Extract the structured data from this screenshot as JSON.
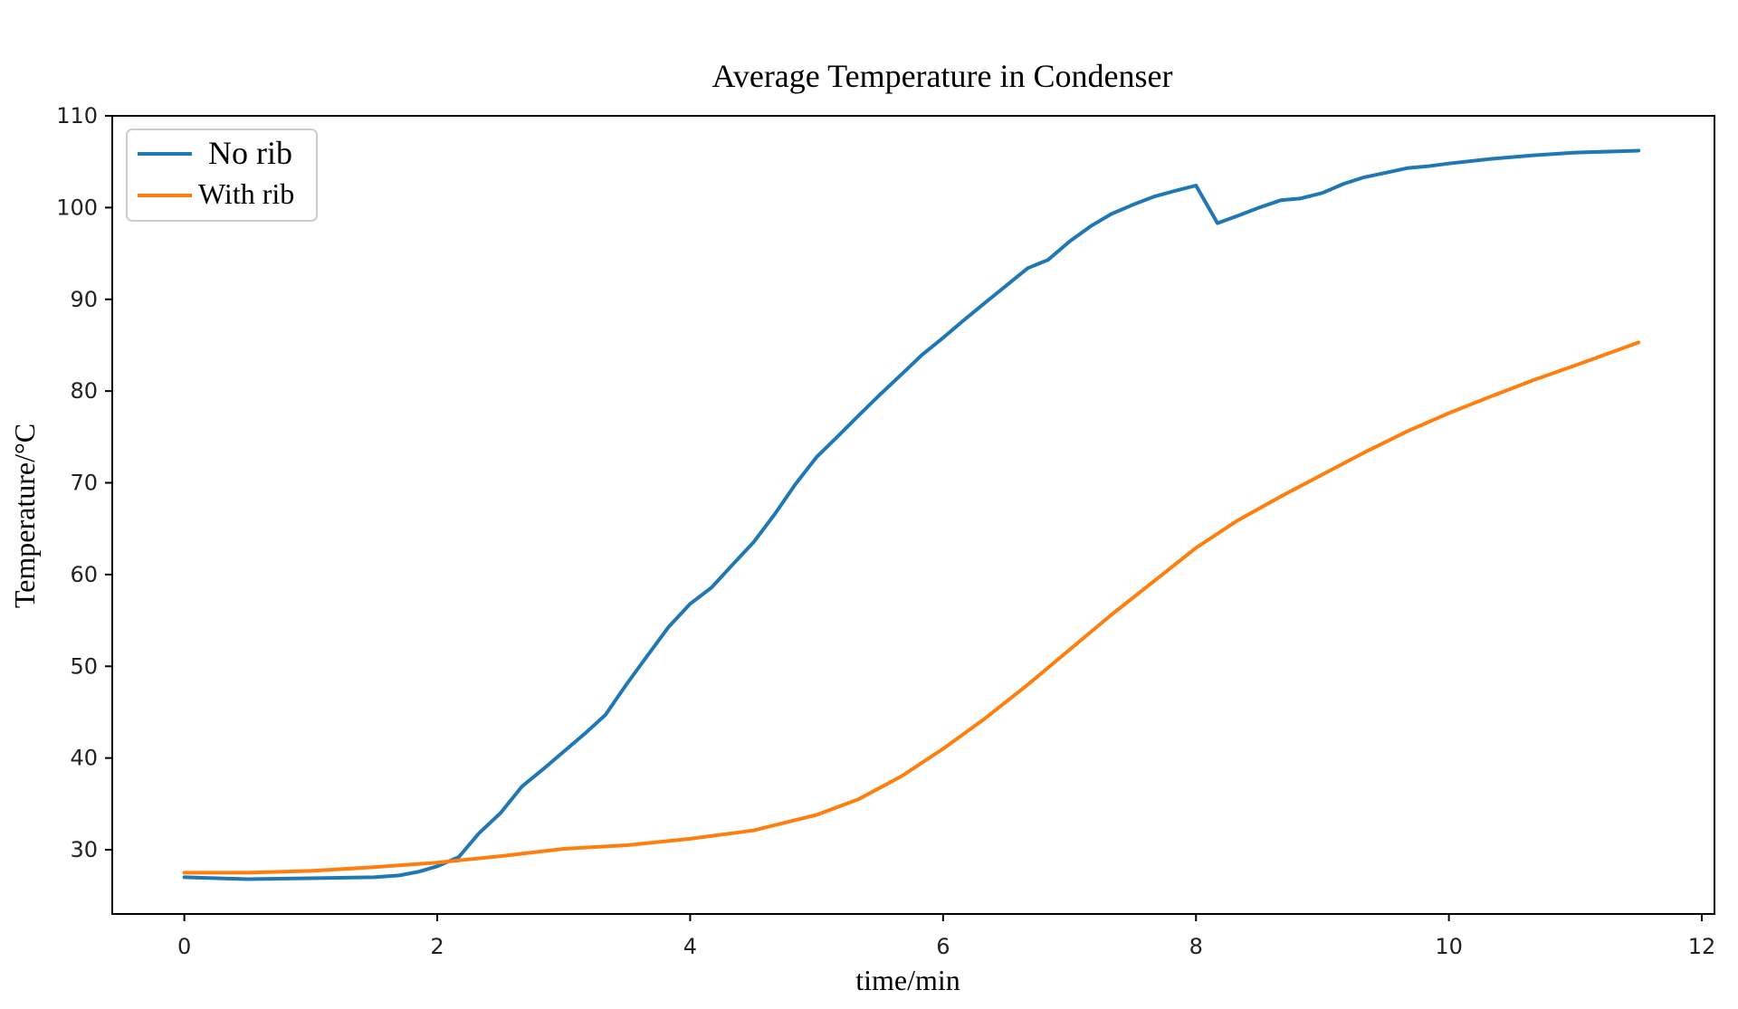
{
  "chart_data": {
    "type": "line",
    "title": "Average Temperature in Condenser",
    "xlabel": "time/min",
    "ylabel": "Temperature/°C",
    "xlim": [
      -0.57,
      12.1
    ],
    "ylim": [
      23,
      110
    ],
    "xticks": [
      0,
      2,
      4,
      6,
      8,
      10,
      12
    ],
    "yticks": [
      30,
      40,
      50,
      60,
      70,
      80,
      90,
      100,
      110
    ],
    "grid": false,
    "legend_position": "top-left",
    "series": [
      {
        "name": "No rib",
        "color": "#1f77b4",
        "x": [
          0,
          0.5,
          1.0,
          1.5,
          1.7,
          1.85,
          2.0,
          2.17,
          2.33,
          2.5,
          2.67,
          2.83,
          3.0,
          3.17,
          3.33,
          3.5,
          3.67,
          3.83,
          4.0,
          4.17,
          4.33,
          4.5,
          4.67,
          4.83,
          5.0,
          5.17,
          5.33,
          5.5,
          5.67,
          5.83,
          6.0,
          6.17,
          6.33,
          6.5,
          6.67,
          6.83,
          7.0,
          7.17,
          7.33,
          7.5,
          7.67,
          7.83,
          8.0,
          8.17,
          8.33,
          8.5,
          8.67,
          8.83,
          9.0,
          9.17,
          9.33,
          9.5,
          9.67,
          9.83,
          10.0,
          10.33,
          10.67,
          11.0,
          11.5
        ],
        "y": [
          27.0,
          26.8,
          26.9,
          27.0,
          27.2,
          27.6,
          28.2,
          29.2,
          31.8,
          34.0,
          36.9,
          38.7,
          40.7,
          42.7,
          44.7,
          48.1,
          51.3,
          54.3,
          56.8,
          58.6,
          61.0,
          63.5,
          66.6,
          69.8,
          72.8,
          75.1,
          77.3,
          79.6,
          81.8,
          83.9,
          85.8,
          87.8,
          89.6,
          91.5,
          93.4,
          94.3,
          96.3,
          98.0,
          99.3,
          100.3,
          101.2,
          101.8,
          102.4,
          98.3,
          99.1,
          100.0,
          100.8,
          101.0,
          101.6,
          102.6,
          103.3,
          103.8,
          104.3,
          104.5,
          104.8,
          105.3,
          105.7,
          106.0,
          106.2
        ]
      },
      {
        "name": "With rib",
        "color": "#ff7f0e",
        "x": [
          0,
          0.5,
          1.0,
          1.5,
          2.0,
          2.5,
          3.0,
          3.5,
          4.0,
          4.5,
          5.0,
          5.33,
          5.67,
          6.0,
          6.33,
          6.67,
          7.0,
          7.33,
          7.67,
          8.0,
          8.33,
          8.67,
          9.0,
          9.33,
          9.67,
          10.0,
          10.33,
          10.67,
          11.0,
          11.5
        ],
        "y": [
          27.5,
          27.5,
          27.7,
          28.1,
          28.6,
          29.3,
          30.1,
          30.5,
          31.2,
          32.1,
          33.8,
          35.5,
          38.0,
          41.0,
          44.3,
          48.0,
          51.8,
          55.6,
          59.3,
          62.9,
          65.9,
          68.5,
          70.9,
          73.3,
          75.6,
          77.6,
          79.4,
          81.2,
          82.8,
          85.3
        ]
      }
    ]
  }
}
